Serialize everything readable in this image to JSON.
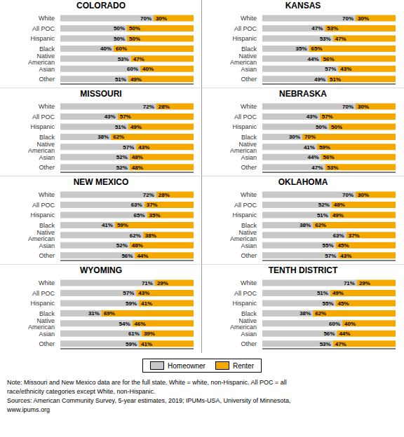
{
  "chart_data": [
    {
      "type": "bar",
      "title": "COLORADO",
      "orientation": "horizontal",
      "stacked": true,
      "data_labels": true,
      "tick_labels": "y",
      "xlim": [
        0,
        100
      ],
      "categories": [
        "White",
        "All POC",
        "Hispanic",
        "Black",
        "Native American",
        "Asian",
        "Other"
      ],
      "series": [
        {
          "name": "Homeowner",
          "color": "#c8c8c8",
          "values": [
            70,
            50,
            50,
            40,
            53,
            60,
            51
          ],
          "value_labels": [
            "70%",
            "50%",
            "50%",
            "40%",
            "53%",
            "60%",
            "51%"
          ]
        },
        {
          "name": "Renter",
          "color": "#f5a800",
          "values": [
            30,
            50,
            50,
            60,
            47,
            40,
            49
          ],
          "value_labels": [
            "30%",
            "50%",
            "50%",
            "60%",
            "47%",
            "40%",
            "49%"
          ]
        }
      ]
    },
    {
      "type": "bar",
      "title": "KANSAS",
      "orientation": "horizontal",
      "stacked": true,
      "data_labels": true,
      "tick_labels": "y",
      "xlim": [
        0,
        100
      ],
      "categories": [
        "White",
        "All POC",
        "Hispanic",
        "Black",
        "Native American",
        "Asian",
        "Other"
      ],
      "series": [
        {
          "name": "Homeowner",
          "color": "#c8c8c8",
          "values": [
            70,
            47,
            53,
            35,
            44,
            57,
            49
          ],
          "value_labels": [
            "70%",
            "47%",
            "53%",
            "35%",
            "44%",
            "57%",
            "49%"
          ]
        },
        {
          "name": "Renter",
          "color": "#f5a800",
          "values": [
            30,
            53,
            47,
            65,
            56,
            43,
            51
          ],
          "value_labels": [
            "30%",
            "53%",
            "47%",
            "65%",
            "56%",
            "43%",
            "51%"
          ]
        }
      ]
    },
    {
      "type": "bar",
      "title": "MISSOURI",
      "orientation": "horizontal",
      "stacked": true,
      "data_labels": true,
      "tick_labels": "y",
      "xlim": [
        0,
        100
      ],
      "categories": [
        "White",
        "All POC",
        "Hispanic",
        "Black",
        "Native American",
        "Asian",
        "Other"
      ],
      "series": [
        {
          "name": "Homeowner",
          "color": "#c8c8c8",
          "values": [
            72,
            43,
            51,
            38,
            57,
            52,
            52
          ],
          "value_labels": [
            "72%",
            "43%",
            "51%",
            "38%",
            "57%",
            "52%",
            "52%"
          ]
        },
        {
          "name": "Renter",
          "color": "#f5a800",
          "values": [
            28,
            57,
            49,
            62,
            43,
            48,
            48
          ],
          "value_labels": [
            "28%",
            "57%",
            "49%",
            "62%",
            "43%",
            "48%",
            "48%"
          ]
        }
      ]
    },
    {
      "type": "bar",
      "title": "NEBRASKA",
      "orientation": "horizontal",
      "stacked": true,
      "data_labels": true,
      "tick_labels": "y",
      "xlim": [
        0,
        100
      ],
      "categories": [
        "White",
        "All POC",
        "Hispanic",
        "Black",
        "Native American",
        "Asian",
        "Other"
      ],
      "series": [
        {
          "name": "Homeowner",
          "color": "#c8c8c8",
          "values": [
            70,
            43,
            50,
            30,
            41,
            44,
            47
          ],
          "value_labels": [
            "70%",
            "43%",
            "50%",
            "30%",
            "41%",
            "44%",
            "47%"
          ]
        },
        {
          "name": "Renter",
          "color": "#f5a800",
          "values": [
            30,
            57,
            50,
            70,
            59,
            56,
            53
          ],
          "value_labels": [
            "30%",
            "57%",
            "50%",
            "70%",
            "59%",
            "56%",
            "53%"
          ]
        }
      ]
    },
    {
      "type": "bar",
      "title": "NEW MEXICO",
      "orientation": "horizontal",
      "stacked": true,
      "data_labels": true,
      "tick_labels": "y",
      "xlim": [
        0,
        100
      ],
      "categories": [
        "White",
        "All POC",
        "Hispanic",
        "Black",
        "Native American",
        "Asian",
        "Other"
      ],
      "series": [
        {
          "name": "Homeowner",
          "color": "#c8c8c8",
          "values": [
            72,
            63,
            65,
            41,
            62,
            52,
            56
          ],
          "value_labels": [
            "72%",
            "63%",
            "65%",
            "41%",
            "62%",
            "52%",
            "56%"
          ]
        },
        {
          "name": "Renter",
          "color": "#f5a800",
          "values": [
            28,
            37,
            35,
            59,
            38,
            48,
            44
          ],
          "value_labels": [
            "28%",
            "37%",
            "35%",
            "59%",
            "38%",
            "48%",
            "44%"
          ]
        }
      ]
    },
    {
      "type": "bar",
      "title": "OKLAHOMA",
      "orientation": "horizontal",
      "stacked": true,
      "data_labels": true,
      "tick_labels": "y",
      "xlim": [
        0,
        100
      ],
      "categories": [
        "White",
        "All POC",
        "Hispanic",
        "Black",
        "Native American",
        "Asian",
        "Other"
      ],
      "series": [
        {
          "name": "Homeowner",
          "color": "#c8c8c8",
          "values": [
            70,
            52,
            51,
            38,
            63,
            55,
            57
          ],
          "value_labels": [
            "70%",
            "52%",
            "51%",
            "38%",
            "63%",
            "55%",
            "57%"
          ]
        },
        {
          "name": "Renter",
          "color": "#f5a800",
          "values": [
            30,
            48,
            49,
            62,
            37,
            45,
            43
          ],
          "value_labels": [
            "30%",
            "48%",
            "49%",
            "62%",
            "37%",
            "45%",
            "43%"
          ]
        }
      ]
    },
    {
      "type": "bar",
      "title": "WYOMING",
      "orientation": "horizontal",
      "stacked": true,
      "data_labels": true,
      "tick_labels": "y",
      "xlim": [
        0,
        100
      ],
      "categories": [
        "White",
        "All POC",
        "Hispanic",
        "Black",
        "Native American",
        "Asian",
        "Other"
      ],
      "series": [
        {
          "name": "Homeowner",
          "color": "#c8c8c8",
          "values": [
            71,
            57,
            59,
            31,
            54,
            61,
            59
          ],
          "value_labels": [
            "71%",
            "57%",
            "59%",
            "31%",
            "54%",
            "61%",
            "59%"
          ]
        },
        {
          "name": "Renter",
          "color": "#f5a800",
          "values": [
            29,
            43,
            41,
            69,
            46,
            39,
            41
          ],
          "value_labels": [
            "29%",
            "43%",
            "41%",
            "69%",
            "46%",
            "39%",
            "41%"
          ]
        }
      ]
    },
    {
      "type": "bar",
      "title": "TENTH DISTRICT",
      "orientation": "horizontal",
      "stacked": true,
      "data_labels": true,
      "tick_labels": "y",
      "xlim": [
        0,
        100
      ],
      "categories": [
        "White",
        "All POC",
        "Hispanic",
        "Black",
        "Native American",
        "Asian",
        "Other"
      ],
      "series": [
        {
          "name": "Homeowner",
          "color": "#c8c8c8",
          "values": [
            71,
            51,
            55,
            38,
            60,
            56,
            53
          ],
          "value_labels": [
            "71%",
            "51%",
            "55%",
            "38%",
            "60%",
            "56%",
            "53%"
          ]
        },
        {
          "name": "Renter",
          "color": "#f5a800",
          "values": [
            29,
            49,
            45,
            62,
            40,
            44,
            47
          ],
          "value_labels": [
            "29%",
            "49%",
            "45%",
            "62%",
            "40%",
            "44%",
            "47%"
          ]
        }
      ]
    }
  ],
  "legend": "bottom",
  "annotations": [
    "Note: Missouri and New Mexico data are for the full state. White = white, non-Hispanic. All POC = all\nrace/ethnicity categories except White, non-Hispanic.\nSources: American Community Survey, 5-year estimates, 2019; IPUMs-USA, University of Minnesota,\nwww.ipums.org"
  ]
}
